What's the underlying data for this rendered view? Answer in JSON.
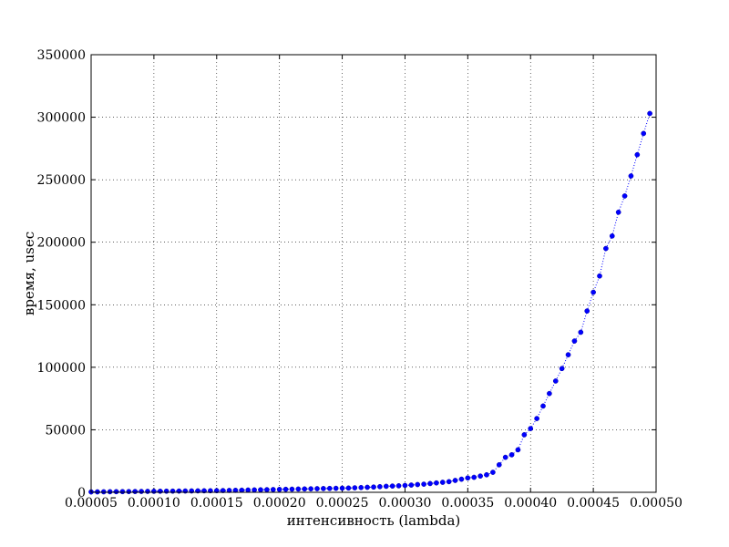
{
  "chart_data": {
    "type": "line",
    "xlabel": "интенсивность (lambda)",
    "ylabel": "время, usec",
    "xlim": [
      5e-05,
      0.0005
    ],
    "ylim": [
      0,
      350000
    ],
    "xticks": [
      "0.00005",
      "0.00010",
      "0.00015",
      "0.00020",
      "0.00025",
      "0.00030",
      "0.00035",
      "0.00040",
      "0.00045",
      "0.00050"
    ],
    "yticks": [
      "0",
      "50000",
      "100000",
      "150000",
      "200000",
      "250000",
      "300000",
      "350000"
    ],
    "grid": true,
    "series": [
      {
        "color": "#0000ff",
        "marker": "circle",
        "linestyle": "dotted",
        "points": [
          [
            5e-05,
            300
          ],
          [
            5.5e-05,
            350
          ],
          [
            6e-05,
            400
          ],
          [
            6.5e-05,
            450
          ],
          [
            7e-05,
            500
          ],
          [
            7.5e-05,
            550
          ],
          [
            8e-05,
            600
          ],
          [
            8.5e-05,
            650
          ],
          [
            9e-05,
            700
          ],
          [
            9.5e-05,
            750
          ],
          [
            0.0001,
            800
          ],
          [
            0.000105,
            850
          ],
          [
            0.00011,
            900
          ],
          [
            0.000115,
            950
          ],
          [
            0.00012,
            1000
          ],
          [
            0.000125,
            1050
          ],
          [
            0.00013,
            1100
          ],
          [
            0.000135,
            1150
          ],
          [
            0.00014,
            1200
          ],
          [
            0.000145,
            1250
          ],
          [
            0.00015,
            1300
          ],
          [
            0.000155,
            1400
          ],
          [
            0.00016,
            1500
          ],
          [
            0.000165,
            1600
          ],
          [
            0.00017,
            1700
          ],
          [
            0.000175,
            1800
          ],
          [
            0.00018,
            1900
          ],
          [
            0.000185,
            2000
          ],
          [
            0.00019,
            2100
          ],
          [
            0.000195,
            2200
          ],
          [
            0.0002,
            2300
          ],
          [
            0.000205,
            2400
          ],
          [
            0.00021,
            2500
          ],
          [
            0.000215,
            2600
          ],
          [
            0.00022,
            2700
          ],
          [
            0.000225,
            2800
          ],
          [
            0.00023,
            2900
          ],
          [
            0.000235,
            3000
          ],
          [
            0.00024,
            3100
          ],
          [
            0.000245,
            3200
          ],
          [
            0.00025,
            3300
          ],
          [
            0.000255,
            3400
          ],
          [
            0.00026,
            3600
          ],
          [
            0.000265,
            3800
          ],
          [
            0.00027,
            4000
          ],
          [
            0.000275,
            4200
          ],
          [
            0.00028,
            4500
          ],
          [
            0.000285,
            4800
          ],
          [
            0.00029,
            5000
          ],
          [
            0.000295,
            5200
          ],
          [
            0.0003,
            5500
          ],
          [
            0.000305,
            5800
          ],
          [
            0.00031,
            6200
          ],
          [
            0.000315,
            6500
          ],
          [
            0.00032,
            7000
          ],
          [
            0.000325,
            7500
          ],
          [
            0.00033,
            8000
          ],
          [
            0.000335,
            8500
          ],
          [
            0.00034,
            9500
          ],
          [
            0.000345,
            10500
          ],
          [
            0.00035,
            11500
          ],
          [
            0.000355,
            12000
          ],
          [
            0.00036,
            13000
          ],
          [
            0.000365,
            14000
          ],
          [
            0.00037,
            16000
          ],
          [
            0.000375,
            22000
          ],
          [
            0.00038,
            28000
          ],
          [
            0.000385,
            30000
          ],
          [
            0.00039,
            34000
          ],
          [
            0.000395,
            46000
          ],
          [
            0.0004,
            51000
          ],
          [
            0.000405,
            59000
          ],
          [
            0.00041,
            69000
          ],
          [
            0.000415,
            79000
          ],
          [
            0.00042,
            89000
          ],
          [
            0.000425,
            99000
          ],
          [
            0.00043,
            110000
          ],
          [
            0.000435,
            121000
          ],
          [
            0.00044,
            128000
          ],
          [
            0.000445,
            145000
          ],
          [
            0.00045,
            160000
          ],
          [
            0.000455,
            173000
          ],
          [
            0.00046,
            195000
          ],
          [
            0.000465,
            205000
          ],
          [
            0.00047,
            224000
          ],
          [
            0.000475,
            237000
          ],
          [
            0.00048,
            253000
          ],
          [
            0.000485,
            270000
          ],
          [
            0.00049,
            287000
          ],
          [
            0.000495,
            303000
          ]
        ]
      }
    ]
  }
}
